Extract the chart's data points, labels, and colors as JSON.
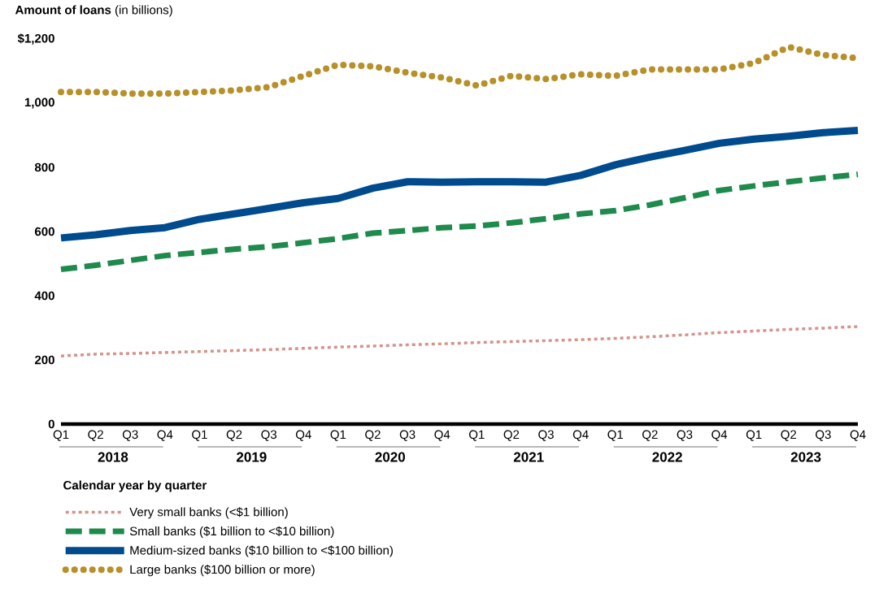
{
  "chart_data": {
    "type": "line",
    "ylabel": "**Amount of loans** (in billions)",
    "xlabel": "Calendar year by quarter",
    "categories": [
      "Q1",
      "Q2",
      "Q3",
      "Q4",
      "Q1",
      "Q2",
      "Q3",
      "Q4",
      "Q1",
      "Q2",
      "Q3",
      "Q4",
      "Q1",
      "Q2",
      "Q3",
      "Q4",
      "Q1",
      "Q2",
      "Q3",
      "Q4",
      "Q1",
      "Q2",
      "Q3",
      "Q4"
    ],
    "annotations": [
      "2018",
      "2019",
      "2020",
      "2021",
      "2022",
      "2023"
    ],
    "ylim": [
      0,
      1200
    ],
    "yticks": [
      0,
      200,
      400,
      600,
      800,
      {
        "value": 1000,
        "label": "1,000"
      },
      {
        "value": 1200,
        "label": "$1,200"
      }
    ],
    "legend": "bottom",
    "series": [
      {
        "name": "Very small banks (<$1 billion)",
        "color": "#d4948b",
        "line_style": "dotted",
        "values": [
          212,
          218,
          220,
          223,
          226,
          229,
          232,
          236,
          240,
          243,
          247,
          250,
          254,
          257,
          260,
          263,
          267,
          272,
          278,
          285,
          290,
          295,
          299,
          304
        ]
      },
      {
        "name": "Small banks ($1 billion to <$10 billion)",
        "color": "#1e8a4c",
        "line_style": "dashed",
        "values": [
          482,
          495,
          510,
          525,
          535,
          545,
          553,
          565,
          578,
          595,
          603,
          612,
          617,
          627,
          640,
          655,
          665,
          683,
          705,
          728,
          742,
          755,
          767,
          778
        ]
      },
      {
        "name": "Medium-sized banks ($10 billion to <$100 billion)",
        "color": "#004b8d",
        "line_style": "solid",
        "values": [
          580,
          590,
          603,
          612,
          638,
          655,
          672,
          690,
          703,
          735,
          755,
          754,
          755,
          755,
          754,
          775,
          808,
          832,
          853,
          875,
          888,
          897,
          908,
          915
        ]
      },
      {
        "name": "Large banks ($100 billion or more)",
        "color": "#b8902a",
        "line_style": "dotted",
        "values": [
          1035,
          1035,
          1030,
          1030,
          1035,
          1040,
          1050,
          1085,
          1120,
          1115,
          1095,
          1080,
          1055,
          1085,
          1075,
          1090,
          1085,
          1105,
          1105,
          1105,
          1125,
          1175,
          1150,
          1140
        ]
      }
    ]
  }
}
